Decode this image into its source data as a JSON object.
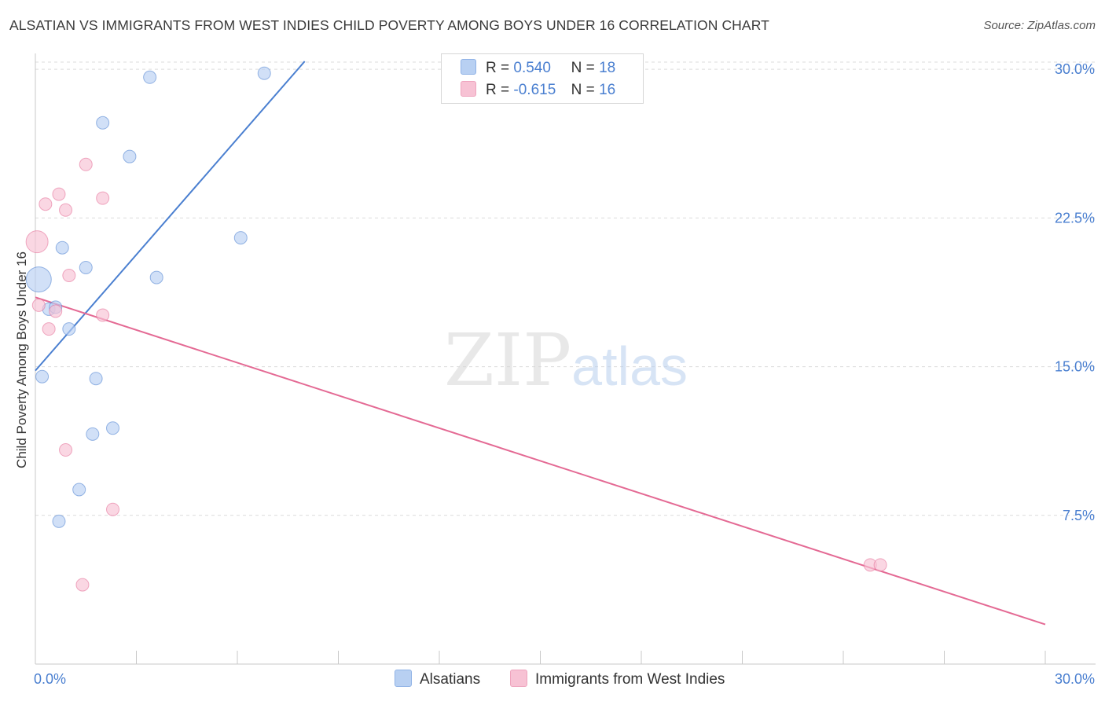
{
  "chart_data": {
    "type": "scatter",
    "title": "ALSATIAN VS IMMIGRANTS FROM WEST INDIES CHILD POVERTY AMONG BOYS UNDER 16 CORRELATION CHART",
    "source": "Source: ZipAtlas.com",
    "xlabel": "",
    "ylabel": "Child Poverty Among Boys Under 16",
    "xlim": [
      0,
      30
    ],
    "ylim": [
      0,
      30.8
    ],
    "x_tick_labels": [
      "0.0%",
      "30.0%"
    ],
    "y_ticks": [
      7.5,
      15.0,
      22.5,
      30.0
    ],
    "y_tick_labels": [
      "7.5%",
      "15.0%",
      "22.5%",
      "30.0%"
    ],
    "grid": "horizontal-dashed",
    "watermark": "ZIPatlas",
    "colors": {
      "blue": "#4a7fd0",
      "blue_fill": "#b8d0f2",
      "pink": "#e46a94",
      "pink_fill": "#f7c2d4"
    },
    "legend_stats": [
      {
        "r_label": "R =",
        "r": "0.540",
        "n_label": "N =",
        "n": "18"
      },
      {
        "r_label": "R =",
        "r": "-0.615",
        "n_label": "N =",
        "n": "16"
      }
    ],
    "series": [
      {
        "name": "Alsatians",
        "color": "#4a7fd0",
        "points": [
          {
            "x": 3.4,
            "y": 29.6,
            "s": 8
          },
          {
            "x": 6.8,
            "y": 29.8,
            "s": 8
          },
          {
            "x": 2.0,
            "y": 27.3,
            "s": 8
          },
          {
            "x": 2.8,
            "y": 25.6,
            "s": 8
          },
          {
            "x": 6.1,
            "y": 21.5,
            "s": 8
          },
          {
            "x": 0.8,
            "y": 21.0,
            "s": 8
          },
          {
            "x": 1.5,
            "y": 20.0,
            "s": 8
          },
          {
            "x": 3.6,
            "y": 19.5,
            "s": 8
          },
          {
            "x": 0.1,
            "y": 19.4,
            "s": 16
          },
          {
            "x": 0.4,
            "y": 17.9,
            "s": 8
          },
          {
            "x": 0.6,
            "y": 18.0,
            "s": 8
          },
          {
            "x": 1.0,
            "y": 16.9,
            "s": 8
          },
          {
            "x": 0.2,
            "y": 14.5,
            "s": 8
          },
          {
            "x": 1.8,
            "y": 14.4,
            "s": 8
          },
          {
            "x": 2.3,
            "y": 11.9,
            "s": 8
          },
          {
            "x": 1.7,
            "y": 11.6,
            "s": 8
          },
          {
            "x": 1.3,
            "y": 8.8,
            "s": 8
          },
          {
            "x": 0.7,
            "y": 7.2,
            "s": 8
          }
        ],
        "trend": {
          "x1": 0.0,
          "y1": 14.8,
          "x2": 8.0,
          "y2": 30.4
        }
      },
      {
        "name": "Immigrants from West Indies",
        "color": "#e46a94",
        "points": [
          {
            "x": 1.5,
            "y": 25.2,
            "s": 8
          },
          {
            "x": 0.7,
            "y": 23.7,
            "s": 8
          },
          {
            "x": 2.0,
            "y": 23.5,
            "s": 8
          },
          {
            "x": 0.3,
            "y": 23.2,
            "s": 8
          },
          {
            "x": 0.9,
            "y": 22.9,
            "s": 8
          },
          {
            "x": 0.05,
            "y": 21.3,
            "s": 14
          },
          {
            "x": 1.0,
            "y": 19.6,
            "s": 8
          },
          {
            "x": 0.1,
            "y": 18.1,
            "s": 8
          },
          {
            "x": 0.6,
            "y": 17.8,
            "s": 8
          },
          {
            "x": 2.0,
            "y": 17.6,
            "s": 8
          },
          {
            "x": 0.4,
            "y": 16.9,
            "s": 8
          },
          {
            "x": 0.9,
            "y": 10.8,
            "s": 8
          },
          {
            "x": 2.3,
            "y": 7.8,
            "s": 8
          },
          {
            "x": 1.4,
            "y": 4.0,
            "s": 8
          },
          {
            "x": 24.8,
            "y": 5.0,
            "s": 8
          },
          {
            "x": 25.1,
            "y": 5.0,
            "s": 8
          }
        ],
        "trend": {
          "x1": 0.0,
          "y1": 18.5,
          "x2": 30.0,
          "y2": 2.0
        }
      }
    ]
  }
}
